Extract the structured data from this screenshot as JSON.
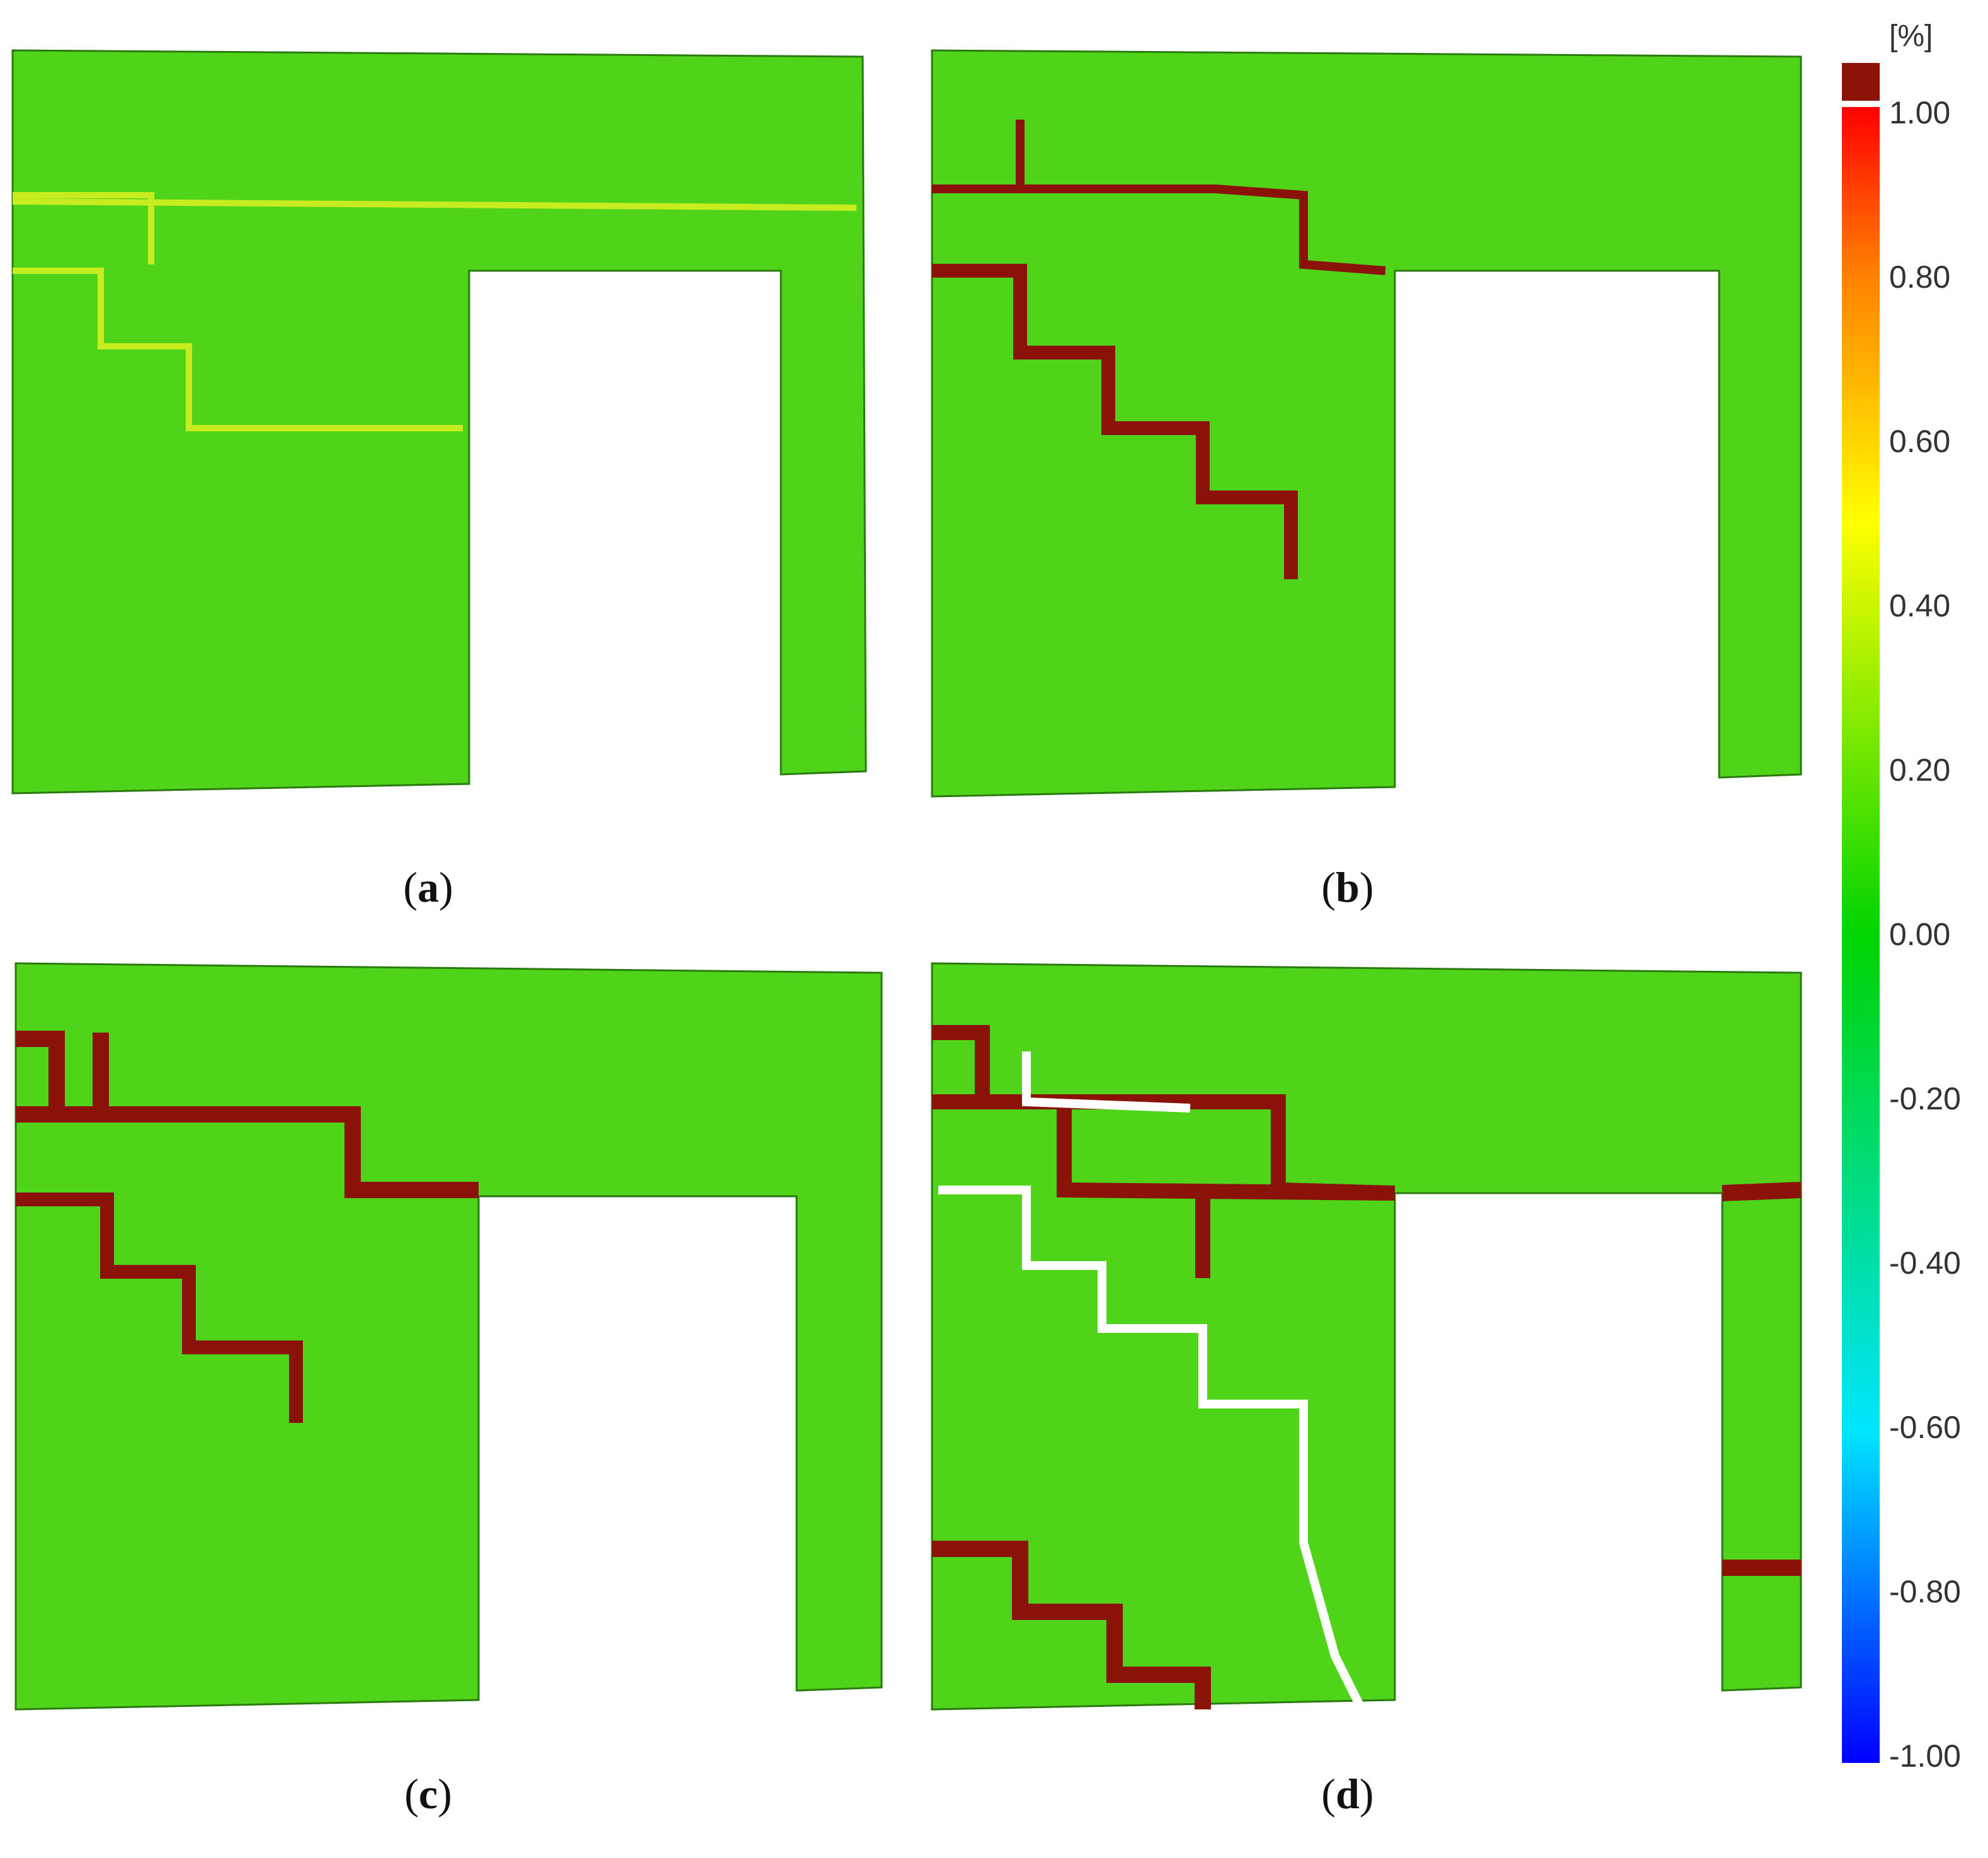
{
  "figure": {
    "panels": [
      {
        "id": "a",
        "caption": "a",
        "cracks": "faint"
      },
      {
        "id": "b",
        "caption": "b",
        "cracks": "stepped"
      },
      {
        "id": "c",
        "caption": "c",
        "cracks": "extended"
      },
      {
        "id": "d",
        "caption": "d",
        "cracks": "failure"
      }
    ],
    "colorbar": {
      "unit": "[%]",
      "ticks": [
        "1.00",
        "0.80",
        "0.60",
        "0.40",
        "0.20",
        "0.00",
        "-0.20",
        "-0.40",
        "-0.60",
        "-0.80",
        "-1.00"
      ],
      "overflow_color": "#8b1208",
      "colors": [
        "#0000ff",
        "#00e5ff",
        "#00d400",
        "#ffff00",
        "#ff8000",
        "#ff0000"
      ]
    },
    "field_colors": {
      "base": "#4fd41a",
      "light": "#a8e61e",
      "crack": "#8b1208",
      "edge": "#ffe000"
    }
  }
}
